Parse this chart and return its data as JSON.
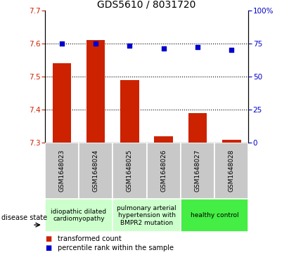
{
  "title": "GDS5610 / 8031720",
  "samples": [
    "GSM1648023",
    "GSM1648024",
    "GSM1648025",
    "GSM1648026",
    "GSM1648027",
    "GSM1648028"
  ],
  "transformed_counts": [
    7.54,
    7.61,
    7.49,
    7.32,
    7.39,
    7.31
  ],
  "percentile_ranks": [
    75,
    75,
    73,
    71,
    72,
    70
  ],
  "ylim_left": [
    7.3,
    7.7
  ],
  "ylim_right": [
    0,
    100
  ],
  "yticks_left": [
    7.3,
    7.4,
    7.5,
    7.6,
    7.7
  ],
  "yticks_right": [
    0,
    25,
    50,
    75,
    100
  ],
  "bar_color": "#cc2200",
  "dot_color": "#0000cc",
  "group_colors": [
    "#ccffcc",
    "#ccffcc",
    "#44ee44"
  ],
  "group_labels": [
    "idiopathic dilated\ncardiomyopathy",
    "pulmonary arterial\nhypertension with\nBMPR2 mutation",
    "healthy control"
  ],
  "group_ranges": [
    [
      0,
      2
    ],
    [
      2,
      4
    ],
    [
      4,
      6
    ]
  ],
  "legend_labels": [
    "transformed count",
    "percentile rank within the sample"
  ],
  "legend_colors": [
    "#cc2200",
    "#0000cc"
  ],
  "bar_bottom": 7.3,
  "ylabel_left_color": "#cc2200",
  "ylabel_right_color": "#0000cc",
  "title_fontsize": 10,
  "tick_fontsize": 7.5,
  "sample_label_fontsize": 6.5,
  "group_label_fontsize": 6.5,
  "legend_fontsize": 7,
  "cell_bg": "#c8c8c8"
}
